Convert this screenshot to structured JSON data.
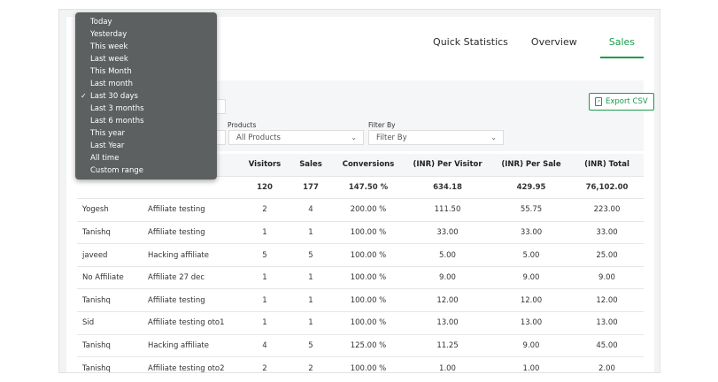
{
  "tabs": [
    {
      "label": "Quick Statistics"
    },
    {
      "label": "Overview"
    },
    {
      "label": "Sales"
    }
  ],
  "active_tab": "Sales",
  "filters": {
    "products_label": "Products",
    "products_value": "All Products",
    "filter_by_label": "Filter By",
    "filter_by_placeholder": "Filter By"
  },
  "export_label": "Export CSV",
  "date_menu": {
    "items": [
      {
        "label": "Today"
      },
      {
        "label": "Yesterday"
      },
      {
        "label": "This week"
      },
      {
        "label": "Last week"
      },
      {
        "label": "This Month"
      },
      {
        "label": "Last month"
      },
      {
        "label": "Last 30 days",
        "checked": true
      },
      {
        "label": "Last 3 months"
      },
      {
        "label": "Last 6 months"
      },
      {
        "label": "This year"
      },
      {
        "label": "Last Year"
      },
      {
        "label": "All time"
      },
      {
        "label": "Custom range"
      }
    ]
  },
  "table": {
    "headers": [
      "Visitors",
      "Sales",
      "Conversions",
      "(INR) Per Visitor",
      "(INR) Per Sale",
      "(INR) Total"
    ],
    "totals": [
      "120",
      "177",
      "147.50 %",
      "634.18",
      "429.95",
      "76,102.00"
    ],
    "rows": [
      [
        "Yogesh",
        "Affiliate testing",
        "2",
        "4",
        "200.00 %",
        "111.50",
        "55.75",
        "223.00"
      ],
      [
        "Tanishq",
        "Affiliate testing",
        "1",
        "1",
        "100.00 %",
        "33.00",
        "33.00",
        "33.00"
      ],
      [
        "javeed",
        "Hacking affiliate",
        "5",
        "5",
        "100.00 %",
        "5.00",
        "5.00",
        "25.00"
      ],
      [
        "No Affiliate",
        "Affiliate 27 dec",
        "1",
        "1",
        "100.00 %",
        "9.00",
        "9.00",
        "9.00"
      ],
      [
        "Tanishq",
        "Affiliate testing",
        "1",
        "1",
        "100.00 %",
        "12.00",
        "12.00",
        "12.00"
      ],
      [
        "Sid",
        "Affiliate testing oto1",
        "1",
        "1",
        "100.00 %",
        "13.00",
        "13.00",
        "13.00"
      ],
      [
        "Tanishq",
        "Hacking affiliate",
        "4",
        "5",
        "125.00 %",
        "11.25",
        "9.00",
        "45.00"
      ],
      [
        "Tanishq",
        "Affiliate testing oto2",
        "2",
        "2",
        "100.00 %",
        "1.00",
        "1.00",
        "2.00"
      ]
    ]
  },
  "colors": {
    "accent": "#1a9c4d",
    "menu_bg": "#5d6061"
  }
}
